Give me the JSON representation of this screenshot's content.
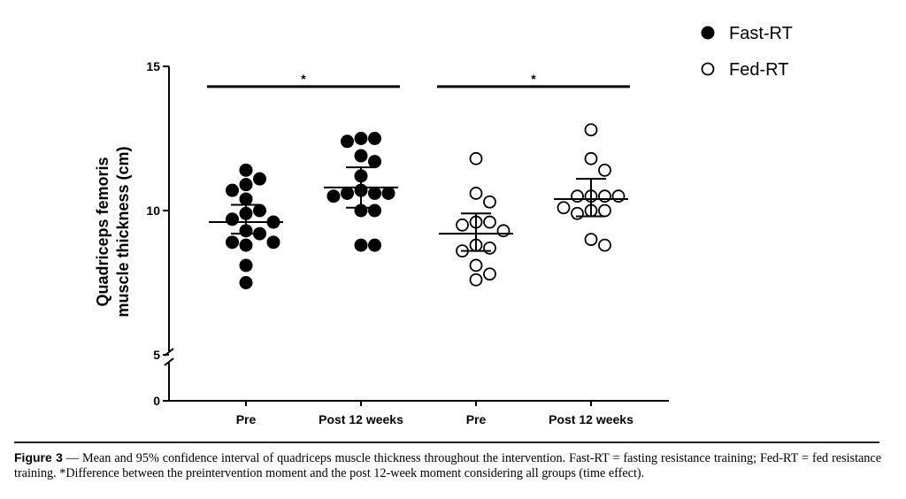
{
  "chart_data": {
    "type": "scatter",
    "ylabel_line1": "Quadriceps femoris",
    "ylabel_line2": "muscle thickness (cm)",
    "y_ticks": [
      "0",
      "5",
      "10",
      "15"
    ],
    "y_axis_break": "5",
    "ylim": [
      0,
      15
    ],
    "categories": [
      "Pre",
      "Post 12 weeks",
      "Pre",
      "Post 12 weeks"
    ],
    "series": [
      {
        "name": "Fast-RT",
        "marker": "filled-circle",
        "color": "#000000",
        "groups": [
          {
            "category_index": 0,
            "mean": 9.6,
            "ci_low": 9.2,
            "ci_high": 10.2,
            "points": [
              11.4,
              11.1,
              10.9,
              10.7,
              10.4,
              10.0,
              9.9,
              9.7,
              9.6,
              9.3,
              9.2,
              8.9,
              8.8,
              8.9,
              8.1,
              7.5
            ]
          },
          {
            "category_index": 1,
            "mean": 10.8,
            "ci_low": 10.1,
            "ci_high": 11.5,
            "points": [
              12.5,
              12.5,
              12.4,
              11.9,
              11.7,
              11.2,
              10.7,
              10.6,
              10.6,
              10.6,
              10.5,
              10.0,
              10.0,
              8.8,
              8.8
            ]
          }
        ]
      },
      {
        "name": "Fed-RT",
        "marker": "open-circle",
        "color": "#000000",
        "groups": [
          {
            "category_index": 2,
            "mean": 9.2,
            "ci_low": 8.6,
            "ci_high": 9.9,
            "points": [
              11.8,
              10.6,
              10.3,
              9.6,
              9.6,
              9.5,
              9.3,
              8.8,
              8.7,
              8.6,
              8.1,
              7.8,
              7.6
            ]
          },
          {
            "category_index": 3,
            "mean": 10.4,
            "ci_low": 9.8,
            "ci_high": 11.1,
            "points": [
              12.8,
              11.8,
              11.4,
              10.5,
              10.5,
              10.5,
              10.5,
              10.1,
              10.0,
              10.0,
              9.9,
              9.0,
              8.8
            ]
          }
        ]
      }
    ],
    "significance": [
      {
        "from_category": 0,
        "to_category": 1,
        "y": 14.3,
        "label": "*"
      },
      {
        "from_category": 2,
        "to_category": 3,
        "y": 14.3,
        "label": "*"
      }
    ],
    "legend": {
      "position": "top-right",
      "entries": [
        "Fast-RT",
        "Fed-RT"
      ]
    },
    "grid": false
  },
  "caption": {
    "label": "Figure 3",
    "dash": "—",
    "text": "Mean and 95% confidence interval of quadriceps muscle thickness throughout the intervention. Fast-RT = fasting resistance training; Fed-RT = fed resistance training. *Difference between the preintervention moment and the post 12-week moment considering all groups (time effect)."
  }
}
